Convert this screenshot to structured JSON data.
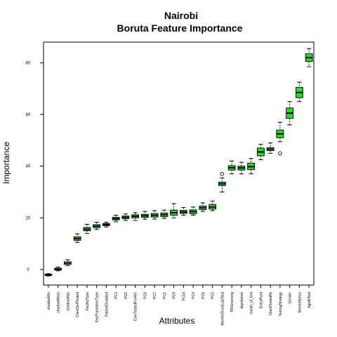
{
  "chart_data": {
    "type": "boxplot",
    "title": "Nairobi",
    "subtitle": "Boruta Feature Importance",
    "xlabel": "Attributes",
    "ylabel": "Importance",
    "ylim": [
      -6,
      88
    ],
    "yticks": [
      0,
      20,
      40,
      60,
      80
    ],
    "colors": {
      "confirmed": "#22dd22",
      "shadow": "#ffffff",
      "box_stroke": "#000000"
    },
    "categories": [
      "shadowMin",
      "shadowMean",
      "shadowMax",
      "ClientSelfTested",
      "FacilityType",
      "KeyPopulationType",
      "PatientDisabled",
      "PC3",
      "PC6",
      "EverTestedForHIV",
      "PC8",
      "PC7",
      "PC1",
      "PC9",
      "PC10",
      "PC4",
      "PC5",
      "PC2",
      "MonthsSinceLastTest",
      "TBScreening",
      "dayofweek",
      "month_of_test",
      "EntryPoint",
      "ClientTestedAs",
      "TestingStrategy",
      "Gender",
      "MaritalStatus",
      "AgeAtTest"
    ],
    "boxes": [
      {
        "min": -2.5,
        "q1": -2.3,
        "median": -2.0,
        "q3": -1.8,
        "max": -1.6,
        "status": "shadow",
        "outliers": []
      },
      {
        "min": -0.5,
        "q1": -0.2,
        "median": 0.2,
        "q3": 0.5,
        "max": 1.0,
        "status": "shadow",
        "outliers": []
      },
      {
        "min": 1.5,
        "q1": 2.0,
        "median": 2.5,
        "q3": 3.0,
        "max": 3.8,
        "status": "shadow",
        "outliers": []
      },
      {
        "min": 10.5,
        "q1": 11.3,
        "median": 12.0,
        "q3": 12.7,
        "max": 13.8,
        "status": "confirmed",
        "outliers": []
      },
      {
        "min": 14.0,
        "q1": 15.0,
        "median": 15.6,
        "q3": 16.3,
        "max": 17.5,
        "status": "confirmed",
        "outliers": []
      },
      {
        "min": 15.5,
        "q1": 16.2,
        "median": 16.8,
        "q3": 17.4,
        "max": 18.3,
        "status": "confirmed",
        "outliers": []
      },
      {
        "min": 16.5,
        "q1": 17.0,
        "median": 17.4,
        "q3": 17.8,
        "max": 18.3,
        "status": "confirmed",
        "outliers": []
      },
      {
        "min": 18.5,
        "q1": 19.2,
        "median": 19.7,
        "q3": 20.2,
        "max": 21.0,
        "status": "confirmed",
        "outliers": []
      },
      {
        "min": 19.0,
        "q1": 19.7,
        "median": 20.2,
        "q3": 20.7,
        "max": 21.5,
        "status": "confirmed",
        "outliers": []
      },
      {
        "min": 19.0,
        "q1": 20.0,
        "median": 20.6,
        "q3": 21.2,
        "max": 22.0,
        "status": "confirmed",
        "outliers": []
      },
      {
        "min": 19.5,
        "q1": 20.2,
        "median": 20.8,
        "q3": 21.4,
        "max": 22.5,
        "status": "confirmed",
        "outliers": []
      },
      {
        "min": 19.5,
        "q1": 20.3,
        "median": 21.0,
        "q3": 21.7,
        "max": 22.8,
        "status": "confirmed",
        "outliers": []
      },
      {
        "min": 19.8,
        "q1": 20.5,
        "median": 21.2,
        "q3": 21.9,
        "max": 23.0,
        "status": "confirmed",
        "outliers": []
      },
      {
        "min": 20.0,
        "q1": 21.0,
        "median": 22.0,
        "q3": 23.0,
        "max": 25.5,
        "status": "confirmed",
        "outliers": []
      },
      {
        "min": 21.0,
        "q1": 21.7,
        "median": 22.3,
        "q3": 22.9,
        "max": 24.0,
        "status": "confirmed",
        "outliers": []
      },
      {
        "min": 21.0,
        "q1": 21.6,
        "median": 22.4,
        "q3": 23.1,
        "max": 24.2,
        "status": "confirmed",
        "outliers": []
      },
      {
        "min": 22.5,
        "q1": 23.2,
        "median": 23.9,
        "q3": 24.6,
        "max": 25.8,
        "status": "confirmed",
        "outliers": []
      },
      {
        "min": 22.8,
        "q1": 23.4,
        "median": 24.2,
        "q3": 25.2,
        "max": 26.5,
        "status": "confirmed",
        "outliers": []
      },
      {
        "min": 30.0,
        "q1": 32.5,
        "median": 33.2,
        "q3": 33.8,
        "max": 35.5,
        "status": "confirmed",
        "outliers": [
          37.0
        ]
      },
      {
        "min": 37.0,
        "q1": 38.5,
        "median": 39.4,
        "q3": 40.2,
        "max": 42.0,
        "status": "confirmed",
        "outliers": []
      },
      {
        "min": 37.0,
        "q1": 38.5,
        "median": 39.3,
        "q3": 40.0,
        "max": 41.5,
        "status": "confirmed",
        "outliers": []
      },
      {
        "min": 37.0,
        "q1": 38.7,
        "median": 39.8,
        "q3": 41.2,
        "max": 43.0,
        "status": "confirmed",
        "outliers": []
      },
      {
        "min": 42.5,
        "q1": 44.0,
        "median": 45.5,
        "q3": 47.0,
        "max": 48.5,
        "status": "confirmed",
        "outliers": []
      },
      {
        "min": 45.0,
        "q1": 46.0,
        "median": 46.6,
        "q3": 47.2,
        "max": 49.0,
        "status": "confirmed",
        "outliers": []
      },
      {
        "min": 49.5,
        "q1": 51.0,
        "median": 52.5,
        "q3": 54.0,
        "max": 57.0,
        "status": "confirmed",
        "outliers": [
          45.0
        ]
      },
      {
        "min": 56.0,
        "q1": 58.5,
        "median": 60.5,
        "q3": 62.5,
        "max": 65.0,
        "status": "confirmed",
        "outliers": []
      },
      {
        "min": 65.0,
        "q1": 66.5,
        "median": 68.5,
        "q3": 70.5,
        "max": 72.5,
        "status": "confirmed",
        "outliers": []
      },
      {
        "min": 78.5,
        "q1": 80.5,
        "median": 82.0,
        "q3": 83.5,
        "max": 85.5,
        "status": "confirmed",
        "outliers": []
      }
    ]
  }
}
